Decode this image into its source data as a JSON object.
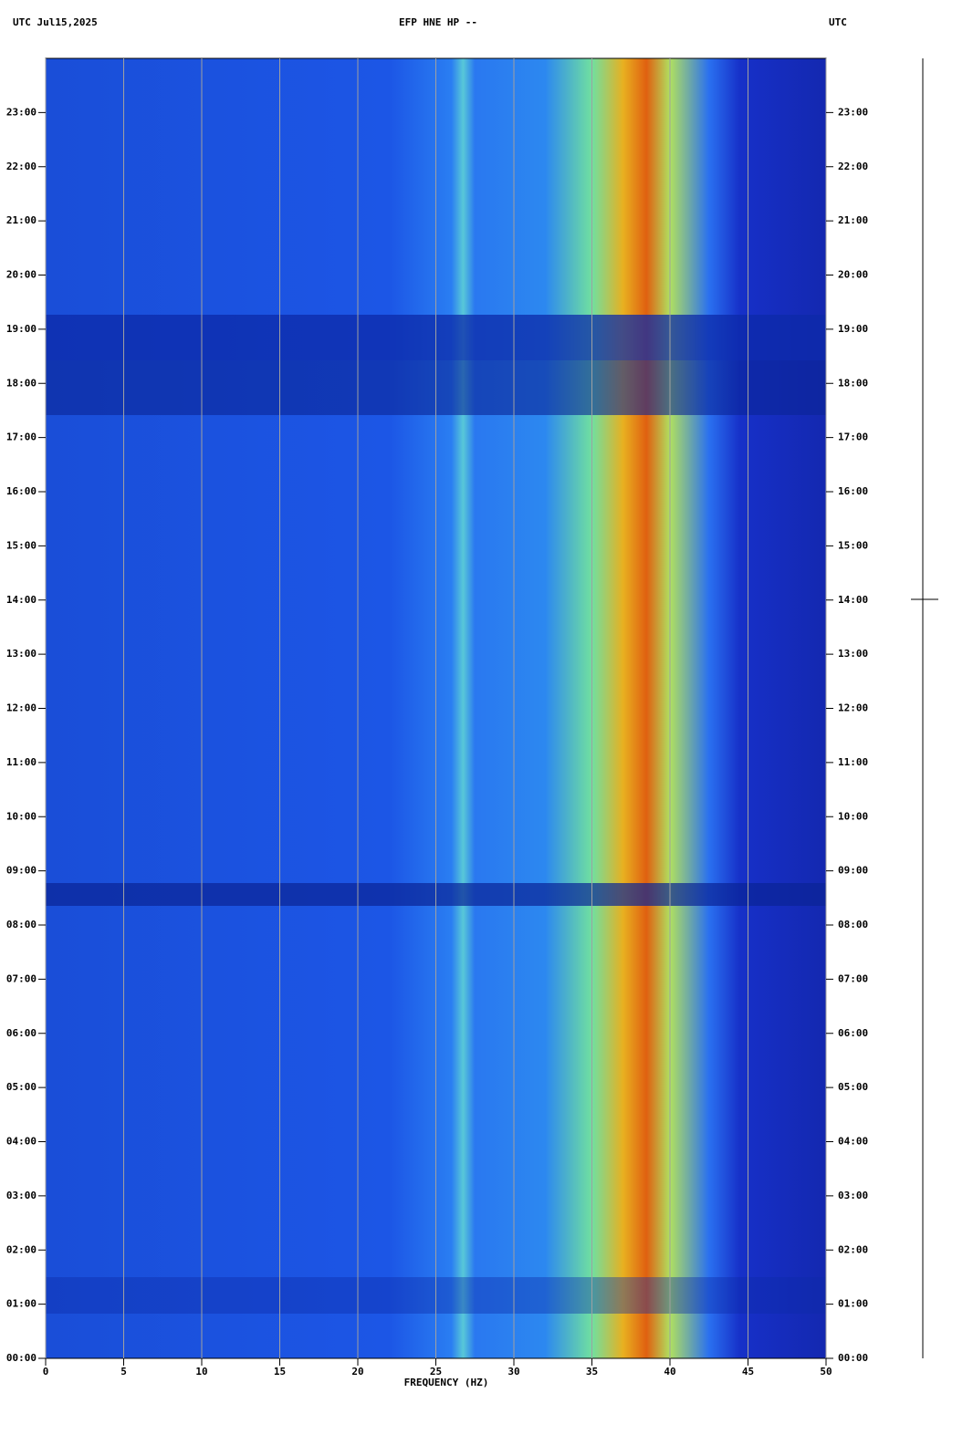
{
  "chart_data": {
    "type": "spectrogram",
    "title": "EFP HNE HP --",
    "header_left": "UTC  Jul15,2025",
    "header_right": "UTC",
    "xlabel": "FREQUENCY (HZ)",
    "xlim": [
      0,
      50
    ],
    "xticks": [
      0,
      5,
      10,
      15,
      20,
      25,
      30,
      35,
      40,
      45,
      50
    ],
    "ylim": [
      0,
      24
    ],
    "yticks": [
      {
        "value": 0,
        "label": "00:00"
      },
      {
        "value": 1,
        "label": "01:00"
      },
      {
        "value": 2,
        "label": "02:00"
      },
      {
        "value": 3,
        "label": "03:00"
      },
      {
        "value": 4,
        "label": "04:00"
      },
      {
        "value": 5,
        "label": "05:00"
      },
      {
        "value": 6,
        "label": "06:00"
      },
      {
        "value": 7,
        "label": "07:00"
      },
      {
        "value": 8,
        "label": "08:00"
      },
      {
        "value": 9,
        "label": "09:00"
      },
      {
        "value": 10,
        "label": "10:00"
      },
      {
        "value": 11,
        "label": "11:00"
      },
      {
        "value": 12,
        "label": "12:00"
      },
      {
        "value": 13,
        "label": "13:00"
      },
      {
        "value": 14,
        "label": "14:00"
      },
      {
        "value": 15,
        "label": "15:00"
      },
      {
        "value": 16,
        "label": "16:00"
      },
      {
        "value": 17,
        "label": "17:00"
      },
      {
        "value": 18,
        "label": "18:00"
      },
      {
        "value": 19,
        "label": "19:00"
      },
      {
        "value": 20,
        "label": "20:00"
      },
      {
        "value": 21,
        "label": "21:00"
      },
      {
        "value": 22,
        "label": "22:00"
      },
      {
        "value": 23,
        "label": "23:00"
      }
    ],
    "grid": true,
    "grid_color": "#a0a0a0"
  }
}
